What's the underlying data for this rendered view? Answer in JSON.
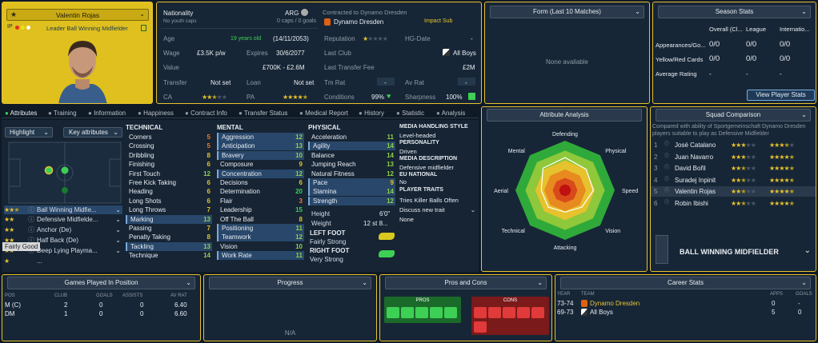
{
  "player": {
    "name": "Valentin Rojas",
    "role": "Leader Ball Winning Midfielder",
    "ip_label": "IP"
  },
  "info": {
    "nationality_label": "Nationality",
    "no_youth_caps": "No youth caps",
    "nation": "ARG",
    "caps": "0 caps / 0 goals",
    "contracted": "Contracted to Dynamo Dresden",
    "club": "Dynamo Dresden",
    "impact": "Impact Sub",
    "age_label": "Age",
    "age_value": "19 years old",
    "dob": "(14/11/2053)",
    "rep_label": "Reputation",
    "hg_label": "HG-Date",
    "hg_value": "-",
    "wage_label": "Wage",
    "wage_value": "£3.5K p/w",
    "expires_label": "Expires",
    "expires_value": "30/6/2077",
    "lastclub_label": "Last Club",
    "lastclub_value": "All Boys",
    "value_label": "Value",
    "value_value": "£700K - £2.6M",
    "fee_label": "Last Transfer Fee",
    "fee_value": "£2M",
    "transfer_label": "Transfer",
    "transfer_value": "Not set",
    "loan_label": "Loan",
    "loan_value": "Not set",
    "tmrat_label": "Tm Rat",
    "tmrat_value": "-",
    "avrat_label": "Av Rat",
    "avrat_value": "-",
    "ca_label": "CA",
    "pa_label": "PA",
    "cond_label": "Conditions",
    "cond_value": "99%",
    "sharp_label": "Sharpness",
    "sharp_value": "100%"
  },
  "form": {
    "title": "Form (Last 10 Matches)",
    "empty": "None available"
  },
  "season": {
    "title": "Season Stats",
    "cols": [
      "Overall (Cl...",
      "League",
      "Internatio..."
    ],
    "rows": [
      {
        "label": "Appearances/Go...",
        "vals": [
          "0/0",
          "0/0",
          "0/0"
        ]
      },
      {
        "label": "Yellow/Red Cards",
        "vals": [
          "0/0",
          "0/0",
          "0/0"
        ]
      },
      {
        "label": "Average Rating",
        "vals": [
          "-",
          "-",
          "-"
        ]
      }
    ],
    "button": "View Player Stats"
  },
  "tabs": [
    "Attributes",
    "Training",
    "Information",
    "Happiness",
    "Contract Info",
    "Transfer Status",
    "Medical Report",
    "History",
    "Statistic",
    "Analysis"
  ],
  "highlight": "Highlight",
  "keyattr": "Key attributes",
  "roles": [
    {
      "name": "Ball Winning Midfie...",
      "stars": 2.5
    },
    {
      "name": "Defensive Midfielde...",
      "stars": 2
    },
    {
      "name": "Anchor (De)",
      "stars": 2
    },
    {
      "name": "Half Back (De)",
      "stars": 2
    },
    {
      "name": "Deep Lying Playma...",
      "stars": 2
    },
    {
      "name": "...",
      "stars": 1
    }
  ],
  "fairly_good": "Fairly Good",
  "technical": {
    "title": "TECHNICAL",
    "items": [
      [
        "Corners",
        "5"
      ],
      [
        "Crossing",
        "5"
      ],
      [
        "Dribbling",
        "8"
      ],
      [
        "Finishing",
        "6"
      ],
      [
        "First Touch",
        "12"
      ],
      [
        "Free Kick Taking",
        "6"
      ],
      [
        "Heading",
        "6"
      ],
      [
        "Long Shots",
        "6"
      ],
      [
        "Long Throws",
        "7"
      ],
      [
        "Marking",
        "13"
      ],
      [
        "Passing",
        "7"
      ],
      [
        "Penalty Taking",
        "8"
      ],
      [
        "Tackling",
        "13"
      ],
      [
        "Technique",
        "14"
      ]
    ]
  },
  "mental": {
    "title": "MENTAL",
    "items": [
      [
        "Aggression",
        "12"
      ],
      [
        "Anticipation",
        "13"
      ],
      [
        "Bravery",
        "10"
      ],
      [
        "Composure",
        "9"
      ],
      [
        "Concentration",
        "12"
      ],
      [
        "Decisions",
        "6"
      ],
      [
        "Determination",
        "20"
      ],
      [
        "Flair",
        "3"
      ],
      [
        "Leadership",
        "15"
      ],
      [
        "Off The Ball",
        "8"
      ],
      [
        "Positioning",
        "11"
      ],
      [
        "Teamwork",
        "12"
      ],
      [
        "Vision",
        "10"
      ],
      [
        "Work Rate",
        "11"
      ]
    ]
  },
  "physical": {
    "title": "PHYSICAL",
    "items": [
      [
        "Acceleration",
        "11"
      ],
      [
        "Agility",
        "14"
      ],
      [
        "Balance",
        "14"
      ],
      [
        "Jumping Reach",
        "13"
      ],
      [
        "Natural Fitness",
        "12"
      ],
      [
        "Pace",
        "9"
      ],
      [
        "Stamina",
        "14"
      ],
      [
        "Strength",
        "12"
      ]
    ]
  },
  "height_label": "Height",
  "height_value": "6'0\"",
  "weight_label": "Weight",
  "weight_value": "12 st 8...",
  "left_foot_label": "LEFT FOOT",
  "left_foot": "Fairly Strong",
  "right_foot_label": "RIGHT FOOT",
  "right_foot": "Very Strong",
  "media": {
    "title": "MEDIA HANDLING STYLE",
    "style": "Level-headed",
    "personality_label": "PERSONALITY",
    "personality": "Driven",
    "desc_label": "MEDIA DESCRIPTION",
    "desc": "Defensive midfielder",
    "eu_label": "EU NATIONAL",
    "eu": "No",
    "traits_label": "PLAYER TRAITS",
    "trait": "Tries Killer Balls Often",
    "discuss": "Discuss new trait",
    "none": "None"
  },
  "analysis": {
    "title": "Attribute Analysis",
    "labels": [
      "Defending",
      "Physical",
      "Speed",
      "Vision",
      "Attacking",
      "Technical",
      "Aerial",
      "Mental"
    ],
    "values": [
      0.66,
      0.6,
      0.57,
      0.48,
      0.44,
      0.48,
      0.48,
      0.63
    ]
  },
  "squad": {
    "title": "Squad Comparison",
    "desc": "Compared with ability of Sportgemeinschaft Dynamo Dresden players suitable to play as Defensive Midfielder",
    "rows": [
      {
        "n": "1",
        "name": "José Catalano",
        "a": 3,
        "b": 3.5
      },
      {
        "n": "2",
        "name": "Juan Navarro",
        "a": 3,
        "b": 4.5
      },
      {
        "n": "3",
        "name": "David Bořil",
        "a": 2.5,
        "b": 4.5
      },
      {
        "n": "4",
        "name": "Suradej Inpinit",
        "a": 2.5,
        "b": 4.5
      },
      {
        "n": "5",
        "name": "Valentin Rojas",
        "a": 2.5,
        "b": 4.5
      },
      {
        "n": "6",
        "name": "Robin Ibishi",
        "a": 2.5,
        "b": 4.5
      }
    ],
    "role": "BALL WINNING MIDFIELDER"
  },
  "games": {
    "title": "Games Played In Position",
    "cols": [
      "POS",
      "CLUB",
      "GOALS",
      "ASSISTS",
      "AV RAT"
    ],
    "rows": [
      [
        "M (C)",
        "2",
        "0",
        "0",
        "6.40"
      ],
      [
        "DM",
        "1",
        "0",
        "0",
        "6.60"
      ]
    ]
  },
  "progress": {
    "title": "Progress",
    "na": "N/A"
  },
  "proscons": {
    "title": "Pros and Cons",
    "pros": "PROS",
    "cons": "CONS"
  },
  "career": {
    "title": "Career Stats",
    "cols": [
      "YEAR",
      "TEAM",
      "APPS",
      "GOALS"
    ],
    "rows": [
      [
        "73-74",
        "Dynamo Dresden",
        "0",
        "-"
      ],
      [
        "69-73",
        "All Boys",
        "5",
        "0"
      ]
    ]
  },
  "colors": {
    "accent": "#e6c22e",
    "green": "#3ecf55",
    "panel": "#172636"
  }
}
